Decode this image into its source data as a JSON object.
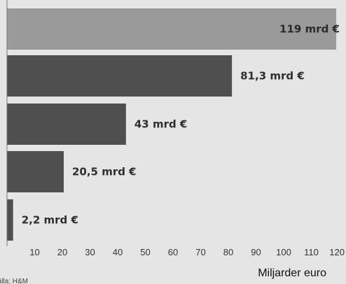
{
  "chart_data": {
    "type": "bar",
    "orientation": "horizontal",
    "categories": [
      "",
      "",
      "",
      "",
      ""
    ],
    "values": [
      119,
      81.3,
      43,
      20.5,
      2.2
    ],
    "value_labels": [
      "119 mrd €",
      "81,3 mrd €",
      "43 mrd €",
      "20,5 mrd €",
      "2,2 mrd €"
    ],
    "xticks": [
      10,
      20,
      30,
      40,
      50,
      60,
      70,
      80,
      90,
      100,
      110,
      120
    ],
    "xlim": [
      0,
      120
    ],
    "xlabel": "Miljarder euro",
    "ylabel": "",
    "title": "",
    "grid": false,
    "legend": "none",
    "colors": {
      "highlight_bar": "#9a9a9a",
      "bar": "#4f4f4f",
      "background": "#e5e5e5",
      "axis_line": "#777777"
    },
    "source": "Källa: H&M"
  }
}
